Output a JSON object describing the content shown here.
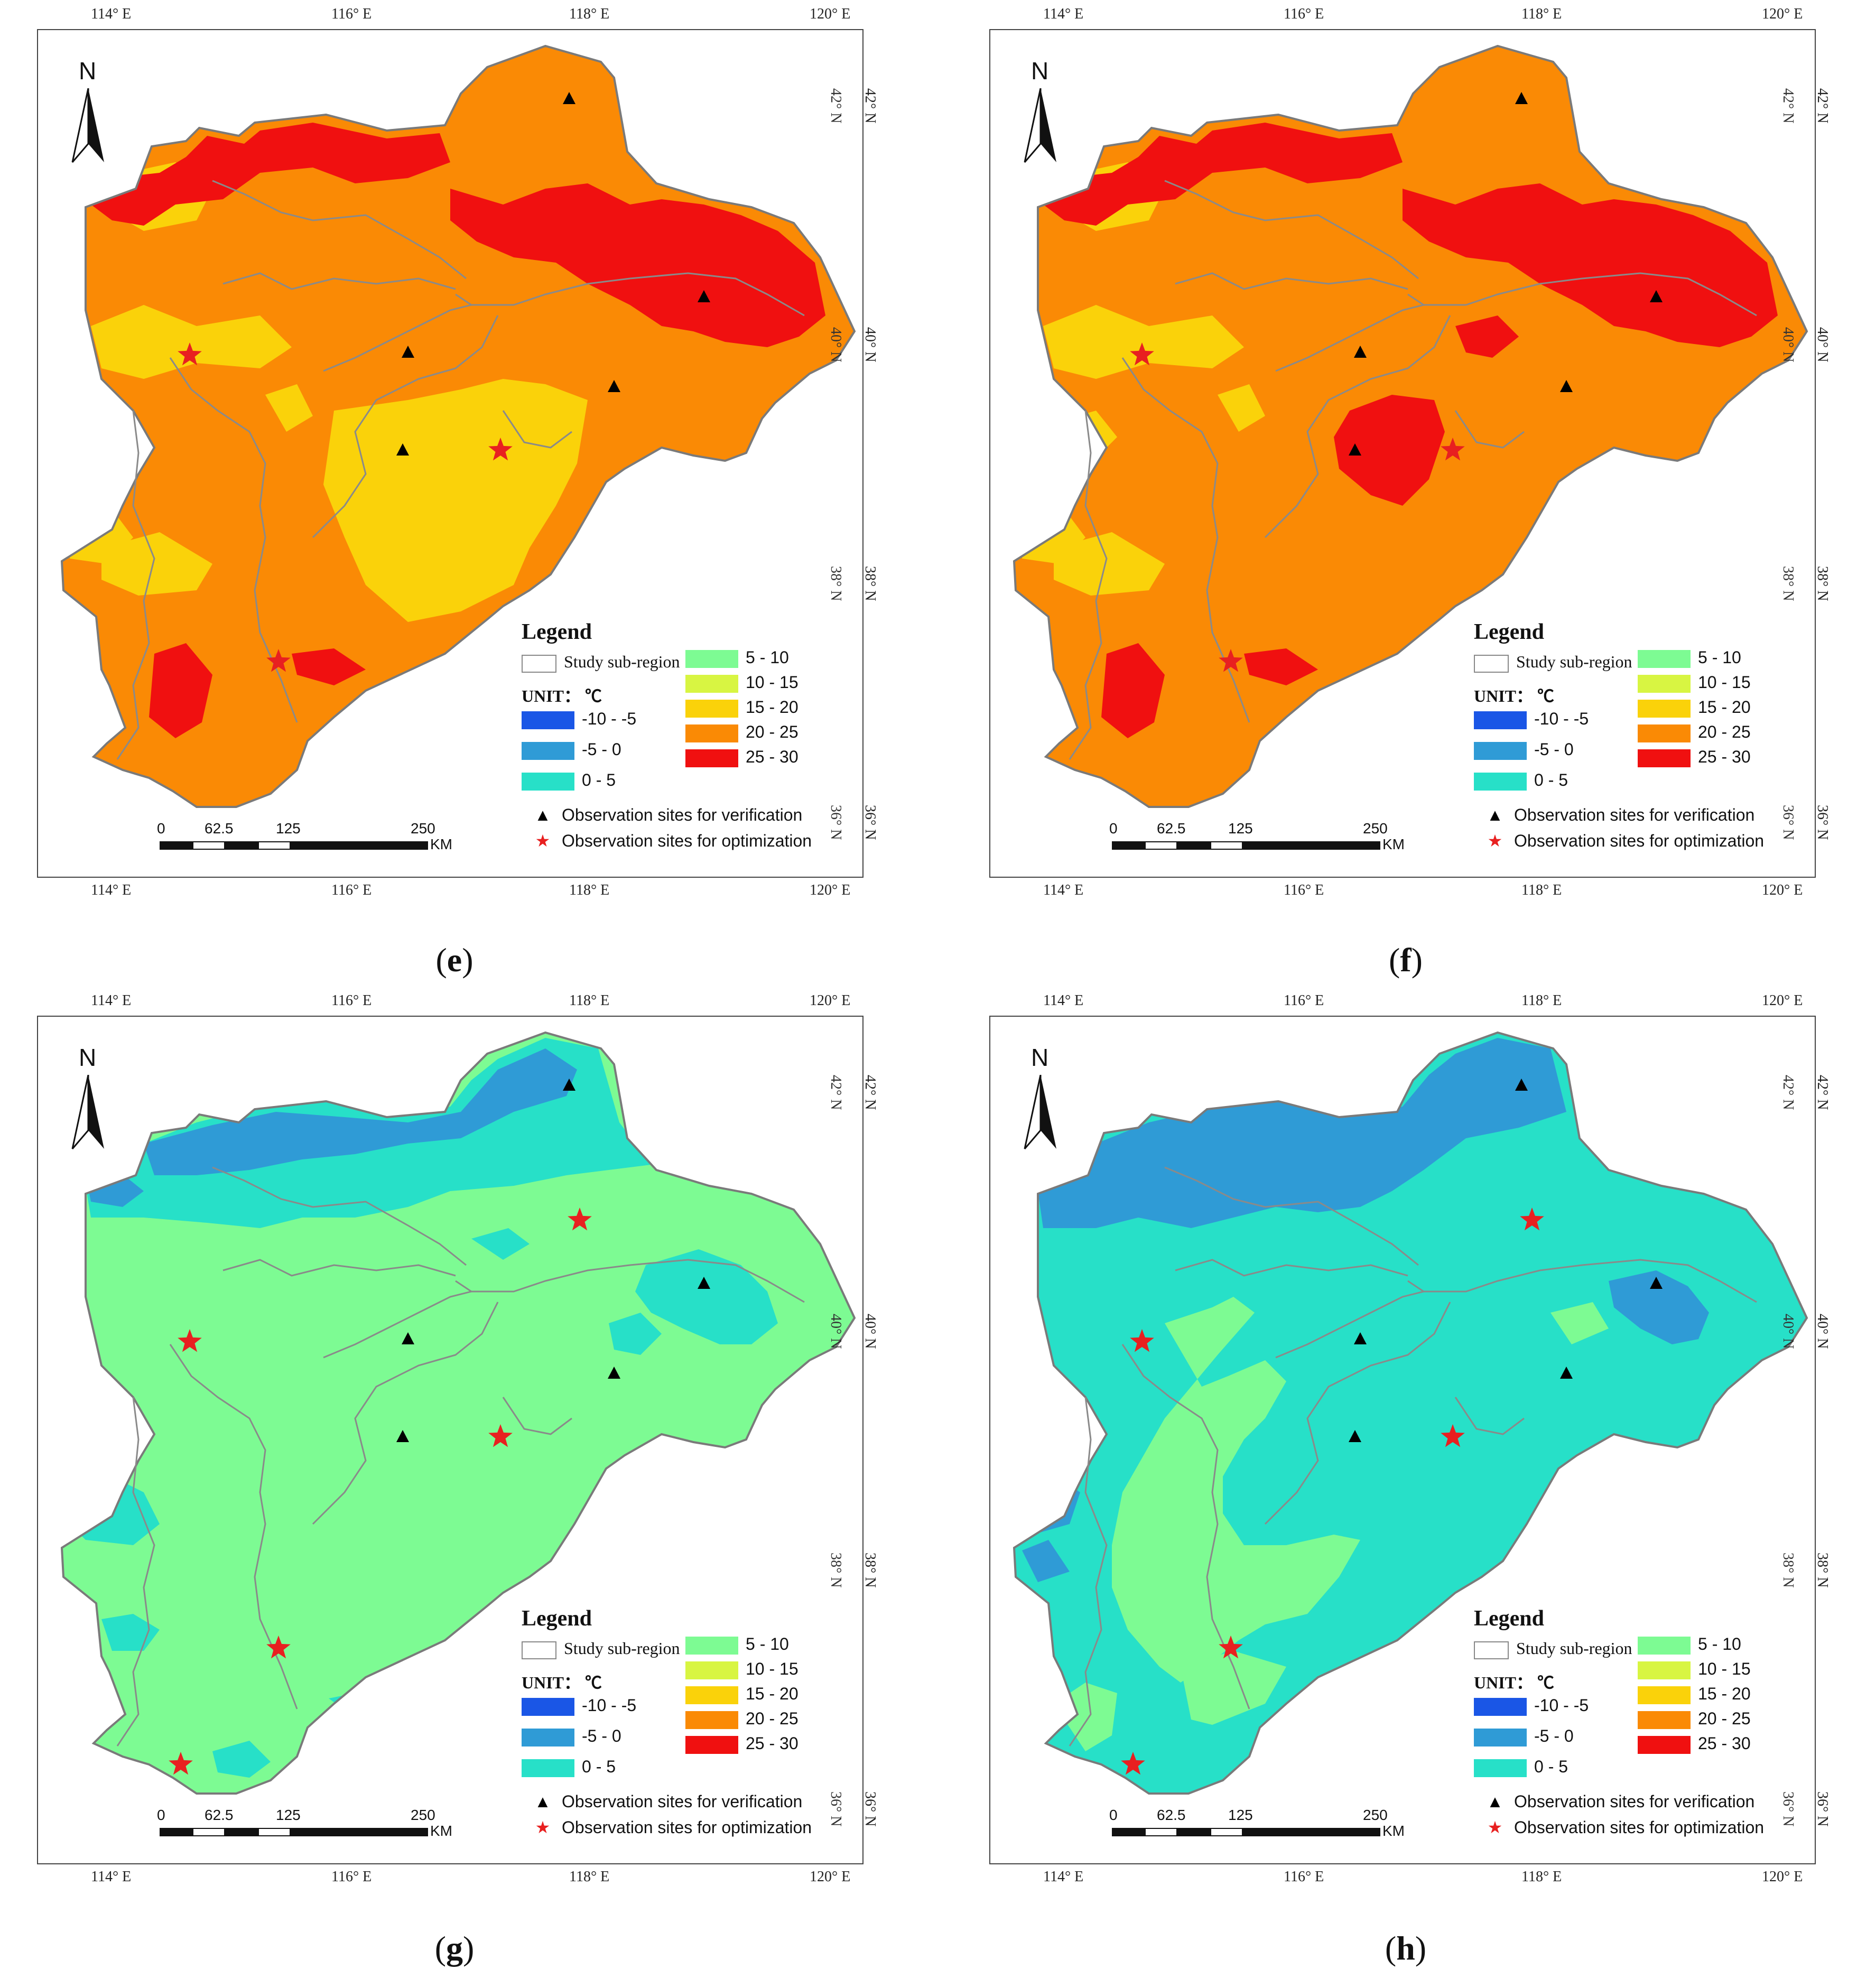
{
  "figure": {
    "panels": [
      {
        "id": "e",
        "caption": "e",
        "variant": "warm1"
      },
      {
        "id": "f",
        "caption": "f",
        "variant": "warm2"
      },
      {
        "id": "g",
        "caption": "g",
        "variant": "cool1"
      },
      {
        "id": "h",
        "caption": "h",
        "variant": "cool2"
      }
    ],
    "top_ticks": [
      "114° E",
      "116° E",
      "118° E",
      "120° E"
    ],
    "bottom_ticks": [
      "114° E",
      "116° E",
      "118° E",
      "120° E"
    ],
    "lat_ticks": [
      "42° N",
      "40° N",
      "38° N",
      "36° N"
    ],
    "north_label": "N"
  },
  "legend": {
    "title": "Legend",
    "sub_region": "Study sub-region",
    "unit": "UNIT： ℃",
    "classes_left": [
      {
        "label": "-10 - -5",
        "color": "#1a56e6"
      },
      {
        "label": "-5  - 0",
        "color": "#2f9bd6"
      },
      {
        "label": "0  - 5",
        "color": "#27e0c8"
      }
    ],
    "classes_right": [
      {
        "label": "5 - 10",
        "color": "#7dfb93"
      },
      {
        "label": "10  - 15",
        "color": "#d8f542"
      },
      {
        "label": "15  - 20",
        "color": "#fad20a"
      },
      {
        "label": "20  - 25",
        "color": "#fa8a05"
      },
      {
        "label": "25  - 30",
        "color": "#f01010"
      }
    ],
    "sites": [
      {
        "symbol": "▲",
        "label": "Observation sites for verification",
        "color": "#000000"
      },
      {
        "symbol": "★",
        "label": "Observation sites for optimization",
        "color": "#e82020"
      }
    ]
  },
  "scale": {
    "labels": [
      "0",
      "62.5",
      "125",
      "250"
    ],
    "unit": "KM"
  }
}
